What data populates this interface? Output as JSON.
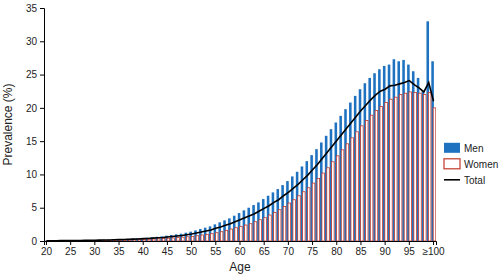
{
  "chart_data": {
    "type": "bar",
    "x_label": "Age",
    "y_label": "Prevalence (%)",
    "categories": [
      "20",
      null,
      null,
      null,
      null,
      "25",
      null,
      null,
      null,
      null,
      "30",
      null,
      null,
      null,
      null,
      "35",
      null,
      null,
      null,
      null,
      "40",
      null,
      null,
      null,
      null,
      "45",
      null,
      null,
      null,
      null,
      "50",
      null,
      null,
      null,
      null,
      "55",
      null,
      null,
      null,
      null,
      "60",
      null,
      null,
      null,
      null,
      "65",
      null,
      null,
      null,
      null,
      "70",
      null,
      null,
      null,
      null,
      "75",
      null,
      null,
      null,
      null,
      "80",
      null,
      null,
      null,
      null,
      "85",
      null,
      null,
      null,
      null,
      "90",
      null,
      null,
      null,
      null,
      "95",
      null,
      null,
      null,
      null,
      "≥100"
    ],
    "series": [
      {
        "name": "Men",
        "type": "bar",
        "color": "#1f72c0",
        "values": [
          0.05,
          0.05,
          0.06,
          0.07,
          0.08,
          0.09,
          0.1,
          0.11,
          0.12,
          0.14,
          0.15,
          0.17,
          0.19,
          0.21,
          0.24,
          0.27,
          0.3,
          0.33,
          0.37,
          0.41,
          0.45,
          0.5,
          0.56,
          0.63,
          0.7,
          0.8,
          0.9,
          1.0,
          1.1,
          1.25,
          1.4,
          1.6,
          1.8,
          2.0,
          2.2,
          2.5,
          2.8,
          3.1,
          3.4,
          3.8,
          4.2,
          4.6,
          5.0,
          5.4,
          5.8,
          6.3,
          6.8,
          7.3,
          7.8,
          8.4,
          9.0,
          9.7,
          10.4,
          11.2,
          12.0,
          12.9,
          13.8,
          14.8,
          15.8,
          16.8,
          17.8,
          18.8,
          19.8,
          20.8,
          21.8,
          22.8,
          23.7,
          24.5,
          25.2,
          25.8,
          26.3,
          26.5,
          27.3,
          27.0,
          27.2,
          26.5,
          25.5,
          24.5,
          22.5,
          33.0,
          27.0
        ]
      },
      {
        "name": "Women",
        "type": "bar",
        "color": "#c0392b",
        "values": [
          0.02,
          0.02,
          0.03,
          0.03,
          0.04,
          0.04,
          0.05,
          0.05,
          0.06,
          0.07,
          0.08,
          0.09,
          0.1,
          0.11,
          0.12,
          0.14,
          0.16,
          0.18,
          0.2,
          0.22,
          0.24,
          0.27,
          0.3,
          0.33,
          0.37,
          0.41,
          0.46,
          0.51,
          0.57,
          0.63,
          0.7,
          0.8,
          0.9,
          1.0,
          1.1,
          1.25,
          1.4,
          1.6,
          1.8,
          2.0,
          2.2,
          2.4,
          2.6,
          2.9,
          3.2,
          3.5,
          3.9,
          4.3,
          4.7,
          5.2,
          5.7,
          6.2,
          6.8,
          7.4,
          8.0,
          8.7,
          9.4,
          10.2,
          11.0,
          11.9,
          12.8,
          13.7,
          14.6,
          15.5,
          16.4,
          17.3,
          18.1,
          18.9,
          19.6,
          20.2,
          20.8,
          21.3,
          21.6,
          22.0,
          22.2,
          22.4,
          22.3,
          22.2,
          22.0,
          22.3,
          20.0
        ]
      },
      {
        "name": "Total",
        "type": "line",
        "color": "#000000",
        "values": [
          0.03,
          0.04,
          0.04,
          0.05,
          0.06,
          0.06,
          0.07,
          0.08,
          0.09,
          0.1,
          0.11,
          0.13,
          0.14,
          0.16,
          0.18,
          0.2,
          0.23,
          0.25,
          0.28,
          0.31,
          0.35,
          0.38,
          0.43,
          0.48,
          0.53,
          0.6,
          0.68,
          0.75,
          0.83,
          0.94,
          1.05,
          1.2,
          1.35,
          1.5,
          1.65,
          1.9,
          2.1,
          2.35,
          2.6,
          2.9,
          3.2,
          3.5,
          3.8,
          4.1,
          4.5,
          4.9,
          5.3,
          5.8,
          6.2,
          6.8,
          7.3,
          7.9,
          8.5,
          9.2,
          9.9,
          10.7,
          11.5,
          12.4,
          13.3,
          14.2,
          15.1,
          16.0,
          16.9,
          17.8,
          18.7,
          19.6,
          20.4,
          21.2,
          21.9,
          22.5,
          22.8,
          23.3,
          23.4,
          23.6,
          23.8,
          24.1,
          23.5,
          23.0,
          22.4,
          23.8,
          21.0
        ]
      }
    ],
    "ylim": [
      0,
      35
    ],
    "yticks": [
      0,
      5,
      10,
      15,
      20,
      25,
      30,
      35
    ],
    "grid": false,
    "legend": "right"
  }
}
